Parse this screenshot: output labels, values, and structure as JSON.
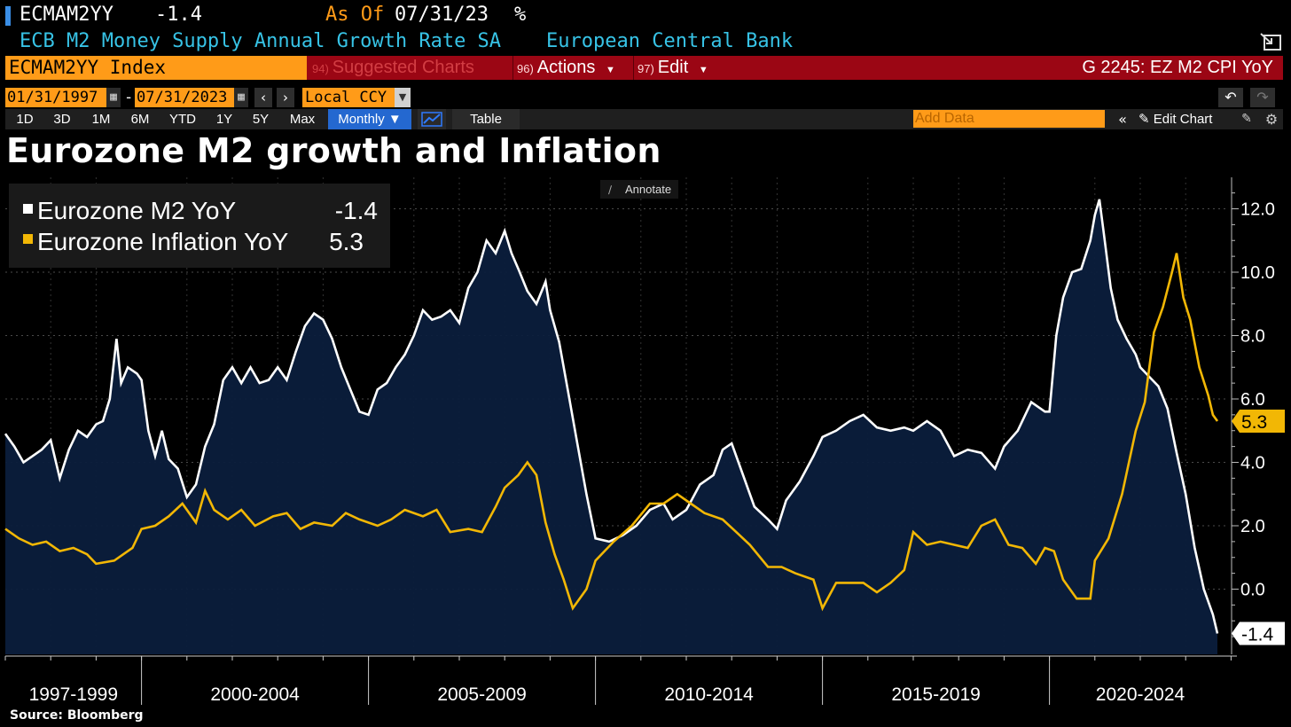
{
  "header": {
    "ticker": "ECMAM2YY",
    "last_value": "-1.4",
    "as_of_label": "As Of",
    "as_of_date": "07/31/23",
    "unit": "%",
    "description": "ECB M2 Money Supply Annual Growth Rate SA",
    "source": "European Central Bank"
  },
  "menu": {
    "index_label": "ECMAM2YY Index",
    "suggested_num": "94)",
    "suggested_label": "Suggested Charts",
    "actions_num": "96)",
    "actions_label": "Actions",
    "edit_num": "97)",
    "edit_label": "Edit",
    "chart_id": "G 2245: EZ M2 CPI YoY"
  },
  "toolbar": {
    "start_date": "01/31/1997",
    "end_date": "07/31/2023",
    "date_sep": "-",
    "currency": "Local CCY",
    "periods": [
      "1D",
      "3D",
      "1M",
      "6M",
      "YTD",
      "1Y",
      "5Y",
      "Max"
    ],
    "frequency": "Monthly ▼",
    "table_label": "Table",
    "add_data_placeholder": "Add Data",
    "edit_chart_label": "Edit Chart",
    "annotate_label": "Annotate"
  },
  "colors": {
    "m2": "#ffffff",
    "inflation": "#f2b705",
    "area_fill": "#0b1e3c",
    "accent_orange": "#ff9b18",
    "menu_red": "#9b0614"
  },
  "footer": "Source: Bloomberg",
  "chart_data": {
    "type": "line",
    "title": "Eurozone M2 growth and Inflation",
    "x_start": "1997-01",
    "x_end": "2023-07",
    "ylim": [
      -2.0,
      13.0
    ],
    "y_ticks": [
      "12.0",
      "10.0",
      "8.0",
      "6.0",
      "4.0",
      "2.0",
      "0.0"
    ],
    "x_labels": [
      "1997-1999",
      "2000-2004",
      "2005-2009",
      "2010-2014",
      "2015-2019",
      "2020-2024"
    ],
    "x_label_years": [
      1998.5,
      2002.5,
      2007.5,
      2012.5,
      2017.5,
      2022.0
    ],
    "x_dividers": [
      2000,
      2005,
      2010,
      2015,
      2020
    ],
    "legend": [
      {
        "name": "Eurozone M2 YoY",
        "value": "-1.4"
      },
      {
        "name": "Eurozone Inflation YoY",
        "value": "5.3"
      }
    ],
    "series": [
      {
        "name": "Eurozone M2 YoY",
        "last_label": "-1.4",
        "area": true,
        "points": [
          [
            1997.0,
            4.9
          ],
          [
            1997.2,
            4.5
          ],
          [
            1997.4,
            4.0
          ],
          [
            1997.6,
            4.2
          ],
          [
            1997.8,
            4.4
          ],
          [
            1998.0,
            4.7
          ],
          [
            1998.2,
            3.5
          ],
          [
            1998.4,
            4.4
          ],
          [
            1998.6,
            5.0
          ],
          [
            1998.8,
            4.8
          ],
          [
            1999.0,
            5.2
          ],
          [
            1999.15,
            5.3
          ],
          [
            1999.3,
            6.0
          ],
          [
            1999.45,
            7.9
          ],
          [
            1999.55,
            6.5
          ],
          [
            1999.7,
            7.0
          ],
          [
            1999.9,
            6.8
          ],
          [
            2000.0,
            6.6
          ],
          [
            2000.15,
            5.0
          ],
          [
            2000.3,
            4.2
          ],
          [
            2000.45,
            5.0
          ],
          [
            2000.6,
            4.1
          ],
          [
            2000.8,
            3.8
          ],
          [
            2001.0,
            2.9
          ],
          [
            2001.2,
            3.3
          ],
          [
            2001.4,
            4.5
          ],
          [
            2001.6,
            5.2
          ],
          [
            2001.8,
            6.6
          ],
          [
            2002.0,
            7.0
          ],
          [
            2002.2,
            6.5
          ],
          [
            2002.4,
            7.0
          ],
          [
            2002.6,
            6.5
          ],
          [
            2002.8,
            6.6
          ],
          [
            2003.0,
            7.0
          ],
          [
            2003.2,
            6.6
          ],
          [
            2003.4,
            7.5
          ],
          [
            2003.6,
            8.3
          ],
          [
            2003.8,
            8.7
          ],
          [
            2004.0,
            8.5
          ],
          [
            2004.2,
            7.9
          ],
          [
            2004.4,
            7.0
          ],
          [
            2004.6,
            6.3
          ],
          [
            2004.8,
            5.6
          ],
          [
            2005.0,
            5.5
          ],
          [
            2005.2,
            6.3
          ],
          [
            2005.4,
            6.5
          ],
          [
            2005.6,
            7.0
          ],
          [
            2005.8,
            7.4
          ],
          [
            2006.0,
            8.0
          ],
          [
            2006.2,
            8.8
          ],
          [
            2006.4,
            8.5
          ],
          [
            2006.6,
            8.6
          ],
          [
            2006.8,
            8.8
          ],
          [
            2007.0,
            8.4
          ],
          [
            2007.2,
            9.5
          ],
          [
            2007.4,
            10.0
          ],
          [
            2007.6,
            11.0
          ],
          [
            2007.8,
            10.6
          ],
          [
            2008.0,
            11.3
          ],
          [
            2008.15,
            10.6
          ],
          [
            2008.3,
            10.1
          ],
          [
            2008.5,
            9.4
          ],
          [
            2008.7,
            9.0
          ],
          [
            2008.9,
            9.7
          ],
          [
            2009.0,
            8.8
          ],
          [
            2009.2,
            7.8
          ],
          [
            2009.4,
            6.2
          ],
          [
            2009.6,
            4.6
          ],
          [
            2009.8,
            3.0
          ],
          [
            2010.0,
            1.6
          ],
          [
            2010.3,
            1.5
          ],
          [
            2010.6,
            1.7
          ],
          [
            2010.9,
            2.0
          ],
          [
            2011.2,
            2.5
          ],
          [
            2011.5,
            2.7
          ],
          [
            2011.7,
            2.2
          ],
          [
            2012.0,
            2.5
          ],
          [
            2012.3,
            3.3
          ],
          [
            2012.6,
            3.6
          ],
          [
            2012.8,
            4.4
          ],
          [
            2013.0,
            4.6
          ],
          [
            2013.3,
            3.4
          ],
          [
            2013.5,
            2.6
          ],
          [
            2013.8,
            2.2
          ],
          [
            2014.0,
            1.9
          ],
          [
            2014.2,
            2.8
          ],
          [
            2014.5,
            3.4
          ],
          [
            2014.8,
            4.2
          ],
          [
            2015.0,
            4.8
          ],
          [
            2015.3,
            5.0
          ],
          [
            2015.6,
            5.3
          ],
          [
            2015.9,
            5.5
          ],
          [
            2016.2,
            5.1
          ],
          [
            2016.5,
            5.0
          ],
          [
            2016.8,
            5.1
          ],
          [
            2017.0,
            5.0
          ],
          [
            2017.3,
            5.3
          ],
          [
            2017.6,
            5.0
          ],
          [
            2017.9,
            4.2
          ],
          [
            2018.2,
            4.4
          ],
          [
            2018.5,
            4.3
          ],
          [
            2018.8,
            3.8
          ],
          [
            2019.0,
            4.5
          ],
          [
            2019.3,
            5.0
          ],
          [
            2019.6,
            5.9
          ],
          [
            2019.9,
            5.6
          ],
          [
            2020.0,
            5.6
          ],
          [
            2020.15,
            8.0
          ],
          [
            2020.3,
            9.2
          ],
          [
            2020.5,
            10.0
          ],
          [
            2020.7,
            10.1
          ],
          [
            2020.9,
            11.0
          ],
          [
            2021.0,
            11.8
          ],
          [
            2021.1,
            12.3
          ],
          [
            2021.2,
            11.2
          ],
          [
            2021.35,
            9.5
          ],
          [
            2021.5,
            8.5
          ],
          [
            2021.7,
            7.9
          ],
          [
            2021.9,
            7.4
          ],
          [
            2022.0,
            7.0
          ],
          [
            2022.2,
            6.7
          ],
          [
            2022.4,
            6.4
          ],
          [
            2022.6,
            5.7
          ],
          [
            2022.8,
            4.3
          ],
          [
            2023.0,
            3.0
          ],
          [
            2023.2,
            1.3
          ],
          [
            2023.4,
            0.0
          ],
          [
            2023.6,
            -0.8
          ],
          [
            2023.7,
            -1.4
          ]
        ]
      },
      {
        "name": "Eurozone Inflation YoY",
        "last_label": "5.3",
        "area": false,
        "points": [
          [
            1997.0,
            1.9
          ],
          [
            1997.3,
            1.6
          ],
          [
            1997.6,
            1.4
          ],
          [
            1997.9,
            1.5
          ],
          [
            1998.2,
            1.2
          ],
          [
            1998.5,
            1.3
          ],
          [
            1998.8,
            1.1
          ],
          [
            1999.0,
            0.8
          ],
          [
            1999.4,
            0.9
          ],
          [
            1999.8,
            1.3
          ],
          [
            2000.0,
            1.9
          ],
          [
            2000.3,
            2.0
          ],
          [
            2000.6,
            2.3
          ],
          [
            2000.9,
            2.7
          ],
          [
            2001.2,
            2.1
          ],
          [
            2001.4,
            3.1
          ],
          [
            2001.6,
            2.5
          ],
          [
            2001.9,
            2.2
          ],
          [
            2002.2,
            2.5
          ],
          [
            2002.5,
            2.0
          ],
          [
            2002.9,
            2.3
          ],
          [
            2003.2,
            2.4
          ],
          [
            2003.5,
            1.9
          ],
          [
            2003.8,
            2.1
          ],
          [
            2004.2,
            2.0
          ],
          [
            2004.5,
            2.4
          ],
          [
            2004.8,
            2.2
          ],
          [
            2005.2,
            2.0
          ],
          [
            2005.5,
            2.2
          ],
          [
            2005.8,
            2.5
          ],
          [
            2006.2,
            2.3
          ],
          [
            2006.5,
            2.5
          ],
          [
            2006.8,
            1.8
          ],
          [
            2007.2,
            1.9
          ],
          [
            2007.5,
            1.8
          ],
          [
            2007.8,
            2.6
          ],
          [
            2008.0,
            3.2
          ],
          [
            2008.3,
            3.6
          ],
          [
            2008.5,
            4.0
          ],
          [
            2008.7,
            3.6
          ],
          [
            2008.9,
            2.1
          ],
          [
            2009.1,
            1.1
          ],
          [
            2009.3,
            0.3
          ],
          [
            2009.5,
            -0.6
          ],
          [
            2009.8,
            0.0
          ],
          [
            2010.0,
            0.9
          ],
          [
            2010.4,
            1.5
          ],
          [
            2010.8,
            2.0
          ],
          [
            2011.2,
            2.7
          ],
          [
            2011.5,
            2.7
          ],
          [
            2011.8,
            3.0
          ],
          [
            2012.1,
            2.7
          ],
          [
            2012.4,
            2.4
          ],
          [
            2012.8,
            2.2
          ],
          [
            2013.1,
            1.8
          ],
          [
            2013.4,
            1.4
          ],
          [
            2013.8,
            0.7
          ],
          [
            2014.1,
            0.7
          ],
          [
            2014.4,
            0.5
          ],
          [
            2014.8,
            0.3
          ],
          [
            2015.0,
            -0.6
          ],
          [
            2015.3,
            0.2
          ],
          [
            2015.6,
            0.2
          ],
          [
            2015.9,
            0.2
          ],
          [
            2016.2,
            -0.1
          ],
          [
            2016.5,
            0.2
          ],
          [
            2016.8,
            0.6
          ],
          [
            2017.0,
            1.8
          ],
          [
            2017.3,
            1.4
          ],
          [
            2017.6,
            1.5
          ],
          [
            2017.9,
            1.4
          ],
          [
            2018.2,
            1.3
          ],
          [
            2018.5,
            2.0
          ],
          [
            2018.8,
            2.2
          ],
          [
            2019.1,
            1.4
          ],
          [
            2019.4,
            1.3
          ],
          [
            2019.7,
            0.8
          ],
          [
            2019.9,
            1.3
          ],
          [
            2020.1,
            1.2
          ],
          [
            2020.3,
            0.3
          ],
          [
            2020.6,
            -0.3
          ],
          [
            2020.9,
            -0.3
          ],
          [
            2021.0,
            0.9
          ],
          [
            2021.3,
            1.6
          ],
          [
            2021.6,
            3.0
          ],
          [
            2021.9,
            5.0
          ],
          [
            2022.1,
            5.9
          ],
          [
            2022.3,
            8.1
          ],
          [
            2022.5,
            8.9
          ],
          [
            2022.7,
            10.0
          ],
          [
            2022.8,
            10.6
          ],
          [
            2022.95,
            9.2
          ],
          [
            2023.1,
            8.5
          ],
          [
            2023.3,
            7.0
          ],
          [
            2023.5,
            6.1
          ],
          [
            2023.6,
            5.5
          ],
          [
            2023.7,
            5.3
          ]
        ]
      }
    ]
  }
}
